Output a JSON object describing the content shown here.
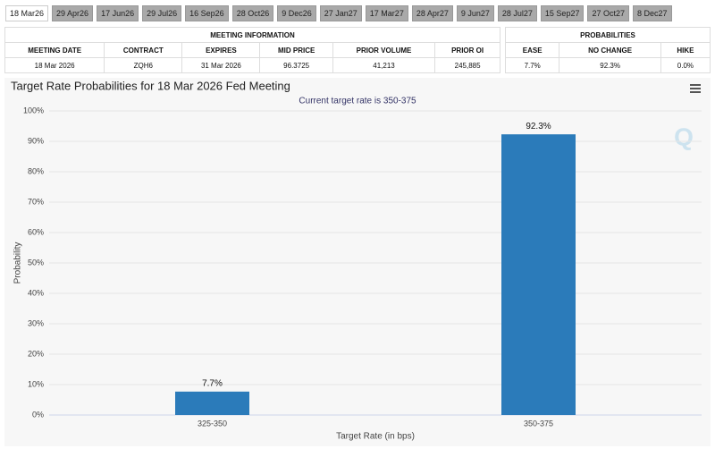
{
  "tabs": [
    "18 Mar26",
    "29 Apr26",
    "17 Jun26",
    "29 Jul26",
    "16 Sep26",
    "28 Oct26",
    "9 Dec26",
    "27 Jan27",
    "17 Mar27",
    "28 Apr27",
    "9 Jun27",
    "28 Jul27",
    "15 Sep27",
    "27 Oct27",
    "8 Dec27"
  ],
  "meeting_table": {
    "title": "MEETING INFORMATION",
    "columns": [
      "MEETING DATE",
      "CONTRACT",
      "EXPIRES",
      "MID PRICE",
      "PRIOR VOLUME",
      "PRIOR OI"
    ],
    "rows": [
      [
        "18 Mar 2026",
        "ZQH6",
        "31 Mar 2026",
        "96.3725",
        "41,213",
        "245,885"
      ]
    ]
  },
  "probabilities_table": {
    "title": "PROBABILITIES",
    "columns": [
      "EASE",
      "NO CHANGE",
      "HIKE"
    ],
    "rows": [
      [
        "7.7%",
        "92.3%",
        "0.0%"
      ]
    ]
  },
  "chart_data": {
    "type": "bar",
    "title": "Target Rate Probabilities for 18 Mar 2026 Fed Meeting",
    "subtitle": "Current target rate is 350-375",
    "x_label": "Target Rate (in bps)",
    "y_label": "Probability",
    "categories": [
      "325-350",
      "350-375"
    ],
    "values": [
      7.7,
      92.3
    ],
    "value_labels": [
      "7.7%",
      "92.3%"
    ],
    "color": "#2b7bba",
    "ylim": [
      0,
      100
    ],
    "yticks": [
      {
        "value": 0,
        "label": "0%"
      },
      {
        "value": 10,
        "label": "10%"
      },
      {
        "value": 20,
        "label": "20%"
      },
      {
        "value": 30,
        "label": "30%"
      },
      {
        "value": 40,
        "label": "40%"
      },
      {
        "value": 50,
        "label": "50%"
      },
      {
        "value": 60,
        "label": "60%"
      },
      {
        "value": 70,
        "label": "70%"
      },
      {
        "value": 80,
        "label": "80%"
      },
      {
        "value": 90,
        "label": "90%"
      },
      {
        "value": 100,
        "label": "100%"
      }
    ],
    "grid": true
  }
}
